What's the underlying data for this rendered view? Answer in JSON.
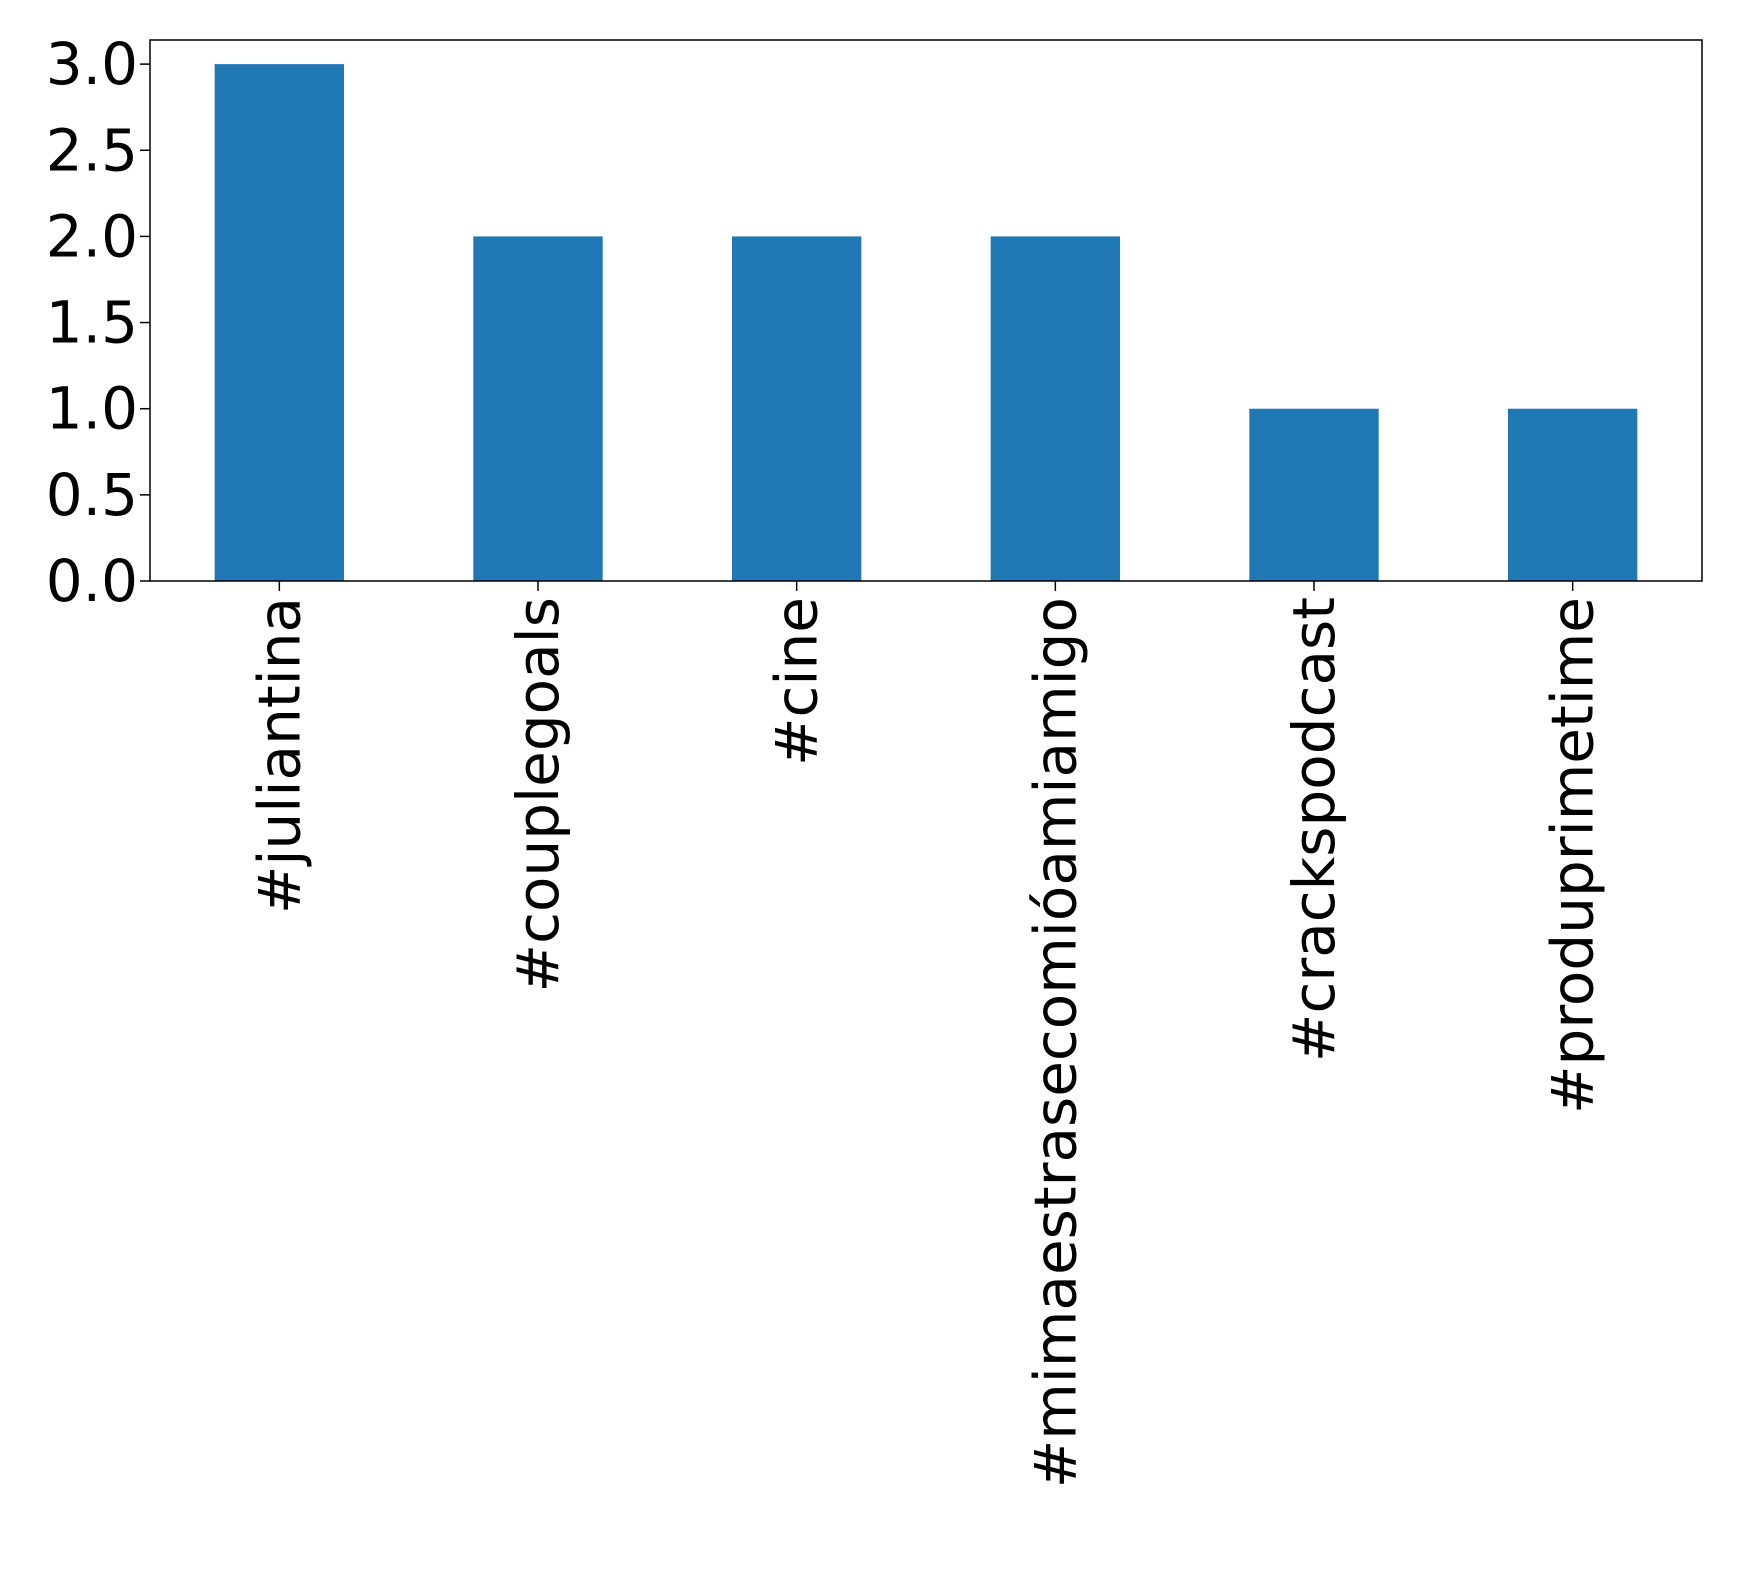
{
  "chart_data": {
    "type": "bar",
    "title": "",
    "xlabel": "",
    "ylabel": "",
    "categories": [
      "#juliantina",
      "#couplegoals",
      "#cine",
      "#mimaestrasecomióamiamigo",
      "#crackspodcast",
      "#produprimetime"
    ],
    "values": [
      3,
      2,
      2,
      2,
      1,
      1
    ],
    "ylim": [
      0,
      3.14
    ],
    "yticks": [
      0.0,
      0.5,
      1.0,
      1.5,
      2.0,
      2.5,
      3.0
    ],
    "ytick_labels": [
      "0.0",
      "0.5",
      "1.0",
      "1.5",
      "2.0",
      "2.5",
      "3.0"
    ],
    "x_tick_rotation": "vertical",
    "grid": false,
    "legend": "none",
    "bar_color": "#1f77b4"
  }
}
